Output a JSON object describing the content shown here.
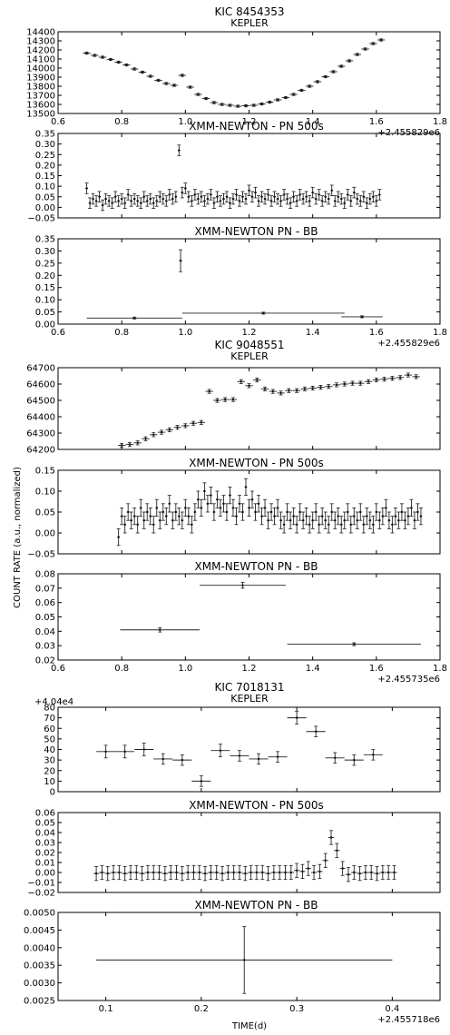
{
  "figure": {
    "ylabel": "COUNT RATE (a.u., normalized)",
    "xlabel": "TIME(d)"
  },
  "chart_data": [
    {
      "type": "scatter",
      "title": "KIC 8454353",
      "subtitle": "KEPLER",
      "xlim": [
        0.6,
        1.8
      ],
      "ylim": [
        13500,
        14400
      ],
      "yticks": [
        "13500",
        "13600",
        "13700",
        "13800",
        "13900",
        "14000",
        "14100",
        "14200",
        "14300",
        "14400"
      ],
      "xticks": [
        "0.6",
        "0.8",
        "1.0",
        "1.2",
        "1.4",
        "1.6",
        "1.8"
      ],
      "offset": "+2.455829e6",
      "x": [
        0.69,
        0.715,
        0.74,
        0.765,
        0.79,
        0.815,
        0.84,
        0.865,
        0.89,
        0.915,
        0.94,
        0.965,
        0.99,
        1.015,
        1.04,
        1.065,
        1.09,
        1.115,
        1.14,
        1.165,
        1.19,
        1.215,
        1.24,
        1.265,
        1.29,
        1.315,
        1.34,
        1.365,
        1.39,
        1.415,
        1.44,
        1.465,
        1.49,
        1.515,
        1.54,
        1.565,
        1.59,
        1.615
      ],
      "y": [
        14165,
        14140,
        14120,
        14095,
        14065,
        14035,
        13990,
        13955,
        13910,
        13865,
        13830,
        13810,
        13920,
        13790,
        13710,
        13665,
        13620,
        13600,
        13590,
        13580,
        13585,
        13590,
        13605,
        13625,
        13650,
        13675,
        13710,
        13755,
        13800,
        13850,
        13905,
        13960,
        14020,
        14080,
        14150,
        14210,
        14270,
        14310
      ],
      "yerr": [
        12,
        12,
        12,
        12,
        12,
        12,
        12,
        12,
        12,
        12,
        12,
        12,
        12,
        12,
        12,
        12,
        12,
        12,
        12,
        12,
        12,
        12,
        12,
        12,
        12,
        12,
        12,
        12,
        12,
        12,
        12,
        12,
        12,
        12,
        12,
        12,
        12,
        12
      ],
      "xerr": 0.012
    },
    {
      "type": "scatter",
      "title": "XMM-NEWTON - PN 500s",
      "xlim": [
        0.6,
        1.8
      ],
      "ylim": [
        -0.05,
        0.35
      ],
      "yticks": [
        "−0.05",
        "0.00",
        "0.05",
        "0.10",
        "0.15",
        "0.20",
        "0.25",
        "0.30",
        "0.35"
      ],
      "x": [
        0.69,
        0.7,
        0.71,
        0.72,
        0.73,
        0.74,
        0.75,
        0.76,
        0.77,
        0.78,
        0.79,
        0.8,
        0.81,
        0.82,
        0.83,
        0.84,
        0.85,
        0.86,
        0.87,
        0.88,
        0.89,
        0.9,
        0.91,
        0.92,
        0.93,
        0.94,
        0.95,
        0.96,
        0.97,
        0.98,
        0.99,
        1.0,
        1.01,
        1.02,
        1.03,
        1.04,
        1.05,
        1.06,
        1.07,
        1.08,
        1.09,
        1.1,
        1.11,
        1.12,
        1.13,
        1.14,
        1.15,
        1.16,
        1.17,
        1.18,
        1.19,
        1.2,
        1.21,
        1.22,
        1.23,
        1.24,
        1.25,
        1.26,
        1.27,
        1.28,
        1.29,
        1.3,
        1.31,
        1.32,
        1.33,
        1.34,
        1.35,
        1.36,
        1.37,
        1.38,
        1.39,
        1.4,
        1.41,
        1.42,
        1.43,
        1.44,
        1.45,
        1.46,
        1.47,
        1.48,
        1.49,
        1.5,
        1.51,
        1.52,
        1.53,
        1.54,
        1.55,
        1.56,
        1.57,
        1.58,
        1.59,
        1.6,
        1.61
      ],
      "y": [
        0.09,
        0.02,
        0.04,
        0.03,
        0.05,
        0.01,
        0.04,
        0.03,
        0.02,
        0.05,
        0.03,
        0.04,
        0.02,
        0.06,
        0.03,
        0.04,
        0.03,
        0.02,
        0.05,
        0.03,
        0.04,
        0.02,
        0.03,
        0.05,
        0.04,
        0.03,
        0.06,
        0.04,
        0.05,
        0.27,
        0.07,
        0.09,
        0.05,
        0.03,
        0.06,
        0.04,
        0.05,
        0.03,
        0.04,
        0.06,
        0.02,
        0.05,
        0.03,
        0.04,
        0.05,
        0.02,
        0.04,
        0.06,
        0.03,
        0.05,
        0.04,
        0.08,
        0.05,
        0.07,
        0.03,
        0.05,
        0.04,
        0.06,
        0.03,
        0.05,
        0.04,
        0.03,
        0.06,
        0.04,
        0.02,
        0.05,
        0.03,
        0.06,
        0.04,
        0.05,
        0.03,
        0.07,
        0.04,
        0.06,
        0.03,
        0.05,
        0.04,
        0.08,
        0.03,
        0.05,
        0.04,
        0.02,
        0.06,
        0.03,
        0.07,
        0.04,
        0.03,
        0.05,
        0.02,
        0.04,
        0.05,
        0.03,
        0.06
      ],
      "yerr": 0.025,
      "xerr": 0.004
    },
    {
      "type": "scatter",
      "title": "XMM-NEWTON PN - BB",
      "xlim": [
        0.6,
        1.8
      ],
      "ylim": [
        0.0,
        0.35
      ],
      "yticks": [
        "0.00",
        "0.05",
        "0.10",
        "0.15",
        "0.20",
        "0.25",
        "0.30",
        "0.35"
      ],
      "xticks": [
        "0.6",
        "0.8",
        "1.0",
        "1.2",
        "1.4",
        "1.6",
        "1.8"
      ],
      "offset": "+2.455829e6",
      "x": [
        0.84,
        0.985,
        1.245,
        1.555
      ],
      "y": [
        0.025,
        0.26,
        0.045,
        0.03
      ],
      "xerr": [
        0.15,
        0.005,
        0.255,
        0.065
      ],
      "yerr": [
        0.004,
        0.045,
        0.004,
        0.004
      ]
    },
    {
      "type": "scatter",
      "title": "KIC 9048551",
      "subtitle": "KEPLER",
      "xlim": [
        0.6,
        1.8
      ],
      "ylim": [
        64200,
        64700
      ],
      "yticks": [
        "64200",
        "64300",
        "64400",
        "64500",
        "64600",
        "64700"
      ],
      "x": [
        0.8,
        0.825,
        0.85,
        0.875,
        0.9,
        0.925,
        0.95,
        0.975,
        1.0,
        1.025,
        1.05,
        1.075,
        1.1,
        1.125,
        1.15,
        1.175,
        1.2,
        1.225,
        1.25,
        1.275,
        1.3,
        1.325,
        1.35,
        1.375,
        1.4,
        1.425,
        1.45,
        1.475,
        1.5,
        1.525,
        1.55,
        1.575,
        1.6,
        1.625,
        1.65,
        1.675,
        1.7,
        1.725
      ],
      "y": [
        64225,
        64230,
        64240,
        64265,
        64290,
        64305,
        64320,
        64335,
        64345,
        64360,
        64365,
        64555,
        64500,
        64505,
        64505,
        64615,
        64590,
        64625,
        64570,
        64555,
        64545,
        64560,
        64560,
        64570,
        64575,
        64580,
        64585,
        64595,
        64600,
        64605,
        64605,
        64615,
        64625,
        64630,
        64635,
        64640,
        64655,
        64645
      ],
      "yerr": 12,
      "xerr": 0.012
    },
    {
      "type": "scatter",
      "title": "XMM-NEWTON - PN 500s",
      "xlim": [
        0.6,
        1.8
      ],
      "ylim": [
        -0.05,
        0.15
      ],
      "yticks": [
        "−0.05",
        "0.00",
        "0.05",
        "0.10",
        "0.15"
      ],
      "x": [
        0.79,
        0.8,
        0.81,
        0.82,
        0.83,
        0.84,
        0.85,
        0.86,
        0.87,
        0.88,
        0.89,
        0.9,
        0.91,
        0.92,
        0.93,
        0.94,
        0.95,
        0.96,
        0.97,
        0.98,
        0.99,
        1.0,
        1.01,
        1.02,
        1.03,
        1.04,
        1.05,
        1.06,
        1.07,
        1.08,
        1.09,
        1.1,
        1.11,
        1.12,
        1.13,
        1.14,
        1.15,
        1.16,
        1.17,
        1.18,
        1.19,
        1.2,
        1.21,
        1.22,
        1.23,
        1.24,
        1.25,
        1.26,
        1.27,
        1.28,
        1.29,
        1.3,
        1.31,
        1.32,
        1.33,
        1.34,
        1.35,
        1.36,
        1.37,
        1.38,
        1.39,
        1.4,
        1.41,
        1.42,
        1.43,
        1.44,
        1.45,
        1.46,
        1.47,
        1.48,
        1.49,
        1.5,
        1.51,
        1.52,
        1.53,
        1.54,
        1.55,
        1.56,
        1.57,
        1.58,
        1.59,
        1.6,
        1.61,
        1.62,
        1.63,
        1.64,
        1.65,
        1.66,
        1.67,
        1.68,
        1.69,
        1.7,
        1.71,
        1.72,
        1.73,
        1.74
      ],
      "y": [
        -0.01,
        0.04,
        0.02,
        0.05,
        0.03,
        0.04,
        0.02,
        0.06,
        0.03,
        0.05,
        0.04,
        0.02,
        0.06,
        0.03,
        0.05,
        0.04,
        0.07,
        0.03,
        0.05,
        0.04,
        0.03,
        0.06,
        0.04,
        0.02,
        0.05,
        0.08,
        0.06,
        0.1,
        0.07,
        0.09,
        0.05,
        0.08,
        0.06,
        0.07,
        0.05,
        0.09,
        0.06,
        0.04,
        0.07,
        0.05,
        0.11,
        0.06,
        0.08,
        0.05,
        0.07,
        0.04,
        0.06,
        0.03,
        0.05,
        0.04,
        0.06,
        0.03,
        0.02,
        0.05,
        0.03,
        0.04,
        0.02,
        0.05,
        0.03,
        0.04,
        0.02,
        0.03,
        0.05,
        0.02,
        0.04,
        0.03,
        0.02,
        0.05,
        0.03,
        0.04,
        0.02,
        0.03,
        0.05,
        0.02,
        0.04,
        0.03,
        0.05,
        0.02,
        0.04,
        0.03,
        0.02,
        0.05,
        0.03,
        0.04,
        0.06,
        0.03,
        0.02,
        0.04,
        0.03,
        0.05,
        0.03,
        0.04,
        0.06,
        0.03,
        0.05,
        0.04
      ],
      "yerr": 0.02,
      "xerr": 0.004
    },
    {
      "type": "scatter",
      "title": "XMM-NEWTON PN - BB",
      "xlim": [
        0.6,
        1.8
      ],
      "ylim": [
        0.02,
        0.08
      ],
      "yticks": [
        "0.02",
        "0.03",
        "0.04",
        "0.05",
        "0.06",
        "0.07",
        "0.08"
      ],
      "xticks": [
        "0.6",
        "0.8",
        "1.0",
        "1.2",
        "1.4",
        "1.6",
        "1.8"
      ],
      "offset": "+2.455735e6",
      "x": [
        0.92,
        1.18,
        1.53
      ],
      "y": [
        0.041,
        0.072,
        0.031
      ],
      "xerr": [
        0.125,
        0.135,
        0.21
      ],
      "yerr": [
        0.0015,
        0.002,
        0.001
      ]
    },
    {
      "type": "scatter",
      "title": "KIC 7018131",
      "subtitle": "KEPLER",
      "xlim": [
        0.05,
        0.45
      ],
      "ylim": [
        0,
        80
      ],
      "yticks": [
        "0",
        "10",
        "20",
        "30",
        "40",
        "50",
        "60",
        "70",
        "80"
      ],
      "offset": "+4.04e4",
      "x": [
        0.1,
        0.12,
        0.14,
        0.16,
        0.18,
        0.2,
        0.22,
        0.24,
        0.26,
        0.28,
        0.3,
        0.32,
        0.34,
        0.36,
        0.38
      ],
      "y": [
        38,
        38,
        40,
        31,
        30,
        10,
        39,
        34,
        31,
        33,
        70,
        57,
        32,
        30,
        35
      ],
      "yerr": [
        6,
        6,
        6,
        5,
        5,
        5,
        6,
        5,
        5,
        5,
        6,
        5,
        5,
        5,
        5
      ],
      "xerr": 0.01
    },
    {
      "type": "scatter",
      "title": "XMM-NEWTON - PN 500s",
      "xlim": [
        0.05,
        0.45
      ],
      "ylim": [
        -0.02,
        0.06
      ],
      "yticks": [
        "−0.02",
        "−0.01",
        "0.00",
        "0.01",
        "0.02",
        "0.03",
        "0.04",
        "0.05",
        "0.06"
      ],
      "x": [
        0.09,
        0.096,
        0.102,
        0.108,
        0.114,
        0.12,
        0.126,
        0.132,
        0.138,
        0.144,
        0.15,
        0.156,
        0.162,
        0.168,
        0.174,
        0.18,
        0.186,
        0.192,
        0.198,
        0.204,
        0.21,
        0.216,
        0.222,
        0.228,
        0.234,
        0.24,
        0.246,
        0.252,
        0.258,
        0.264,
        0.27,
        0.276,
        0.282,
        0.288,
        0.294,
        0.3,
        0.306,
        0.312,
        0.318,
        0.324,
        0.33,
        0.336,
        0.342,
        0.348,
        0.354,
        0.36,
        0.366,
        0.372,
        0.378,
        0.384,
        0.39,
        0.396,
        0.402
      ],
      "y": [
        -0.001,
        0.0,
        -0.001,
        0.0,
        0.0,
        -0.001,
        0.0,
        0.0,
        -0.001,
        0.0,
        0.0,
        0.0,
        -0.001,
        0.0,
        0.0,
        -0.001,
        0.0,
        0.0,
        0.0,
        -0.001,
        0.0,
        0.0,
        -0.001,
        0.0,
        0.0,
        0.0,
        -0.001,
        0.0,
        0.0,
        0.0,
        -0.001,
        0.0,
        0.0,
        0.0,
        0.0,
        0.002,
        0.001,
        0.004,
        0.0,
        0.001,
        0.012,
        0.035,
        0.022,
        0.004,
        -0.002,
        0.0,
        -0.001,
        0.0,
        0.0,
        -0.001,
        0.0,
        0.0,
        0.0
      ],
      "yerr": 0.007,
      "xerr": 0.003
    },
    {
      "type": "scatter",
      "title": "XMM-NEWTON PN - BB",
      "xlim": [
        0.05,
        0.45
      ],
      "ylim": [
        0.0025,
        0.005
      ],
      "yticks": [
        "0.0025",
        "0.0030",
        "0.0035",
        "0.0040",
        "0.0045",
        "0.0050"
      ],
      "xticks": [
        "0.1",
        "0.2",
        "0.3",
        "0.4"
      ],
      "offset": "+2.455718e6",
      "x": [
        0.245
      ],
      "y": [
        0.00365
      ],
      "xerr": [
        0.155
      ],
      "yerr": [
        0.00095
      ]
    }
  ]
}
